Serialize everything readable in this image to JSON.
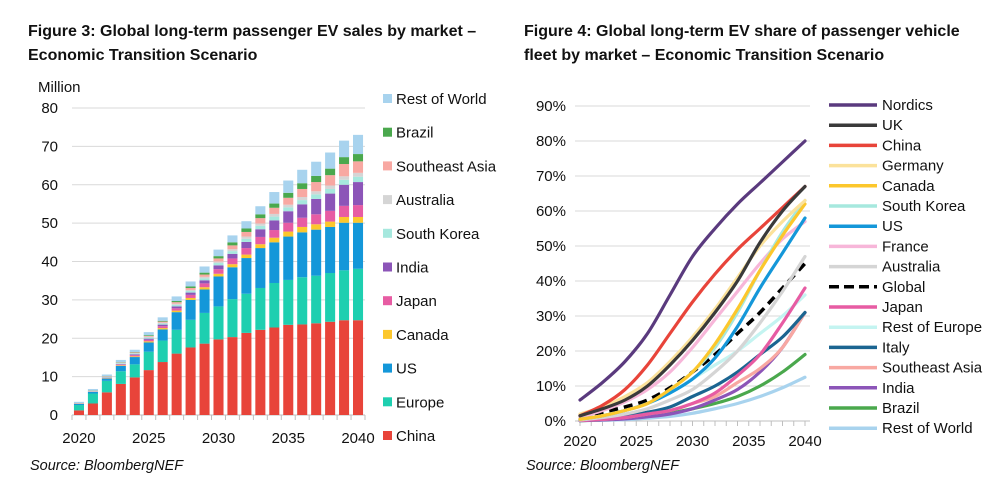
{
  "figure3": {
    "title": "Figure 3: Global long-term passenger EV sales by market – Economic Transition Scenario",
    "source": "Source: BloombergNEF"
  },
  "figure4": {
    "title": "Figure 4: Global long-term EV share of passenger vehicle fleet by market – Economic Transition Scenario",
    "source": "Source: BloombergNEF"
  },
  "chart_data": [
    {
      "type": "bar",
      "stacked": true,
      "title": "Figure 3: Global long-term passenger EV sales by market – Economic Transition Scenario",
      "ylabel": "Million",
      "xlabel": "",
      "ylim": [
        0,
        80
      ],
      "yticks": [
        "0",
        "10",
        "20",
        "30",
        "40",
        "50",
        "60",
        "70",
        "80"
      ],
      "xticks": [
        "2020",
        "2025",
        "2030",
        "2035",
        "2040"
      ],
      "grid": true,
      "legend_position": "right",
      "categories": [
        2020,
        2021,
        2022,
        2023,
        2024,
        2025,
        2026,
        2027,
        2028,
        2029,
        2030,
        2031,
        2032,
        2033,
        2034,
        2035,
        2036,
        2037,
        2038,
        2039,
        2040
      ],
      "series": [
        {
          "name": "China",
          "color": "#e8443a",
          "values": [
            1.2,
            3.0,
            5.9,
            8.1,
            9.8,
            11.7,
            13.8,
            16.0,
            17.6,
            18.6,
            19.7,
            20.3,
            21.4,
            22.2,
            22.8,
            23.5,
            23.6,
            23.9,
            24.3,
            24.7,
            24.7
          ]
        },
        {
          "name": "Europe",
          "color": "#1ecfb0",
          "values": [
            1.4,
            2.6,
            3.0,
            3.3,
            3.4,
            4.8,
            5.6,
            6.2,
            7.2,
            8.0,
            8.6,
            9.9,
            10.2,
            10.9,
            11.6,
            11.7,
            12.3,
            12.4,
            12.7,
            13.0,
            13.4
          ]
        },
        {
          "name": "US",
          "color": "#1497d9",
          "values": [
            0.3,
            0.4,
            0.6,
            1.4,
            1.9,
            2.4,
            2.9,
            4.6,
            5.2,
            6.1,
            7.8,
            8.3,
            9.3,
            10.4,
            10.6,
            11.3,
            11.7,
            12.0,
            12.0,
            12.4,
            12.0
          ]
        },
        {
          "name": "Canada",
          "color": "#fcc72c",
          "values": [
            0.05,
            0.05,
            0.1,
            0.15,
            0.2,
            0.3,
            0.35,
            0.4,
            0.5,
            0.6,
            0.7,
            0.8,
            0.9,
            1.0,
            1.2,
            1.3,
            1.4,
            1.4,
            1.4,
            1.5,
            1.5
          ]
        },
        {
          "name": "Japan",
          "color": "#e75ca3",
          "values": [
            0.05,
            0.05,
            0.1,
            0.2,
            0.3,
            0.4,
            0.5,
            0.6,
            0.8,
            1.0,
            1.2,
            1.5,
            1.7,
            1.9,
            2.0,
            2.3,
            2.4,
            2.6,
            2.8,
            2.9,
            3.1
          ]
        },
        {
          "name": "India",
          "color": "#8c55b8",
          "values": [
            0.02,
            0.03,
            0.05,
            0.1,
            0.2,
            0.3,
            0.4,
            0.5,
            0.6,
            0.8,
            1.0,
            1.2,
            1.6,
            2.0,
            2.5,
            3.0,
            3.5,
            4.0,
            4.5,
            5.5,
            6.0
          ]
        },
        {
          "name": "South Korea",
          "color": "#a6e8de",
          "values": [
            0.05,
            0.1,
            0.15,
            0.2,
            0.2,
            0.3,
            0.3,
            0.4,
            0.4,
            0.5,
            0.6,
            0.7,
            0.8,
            0.9,
            1.0,
            1.0,
            1.1,
            1.2,
            1.2,
            1.3,
            1.4
          ]
        },
        {
          "name": "Australia",
          "color": "#d5d5d5",
          "values": [
            0.02,
            0.05,
            0.1,
            0.1,
            0.15,
            0.2,
            0.2,
            0.3,
            0.3,
            0.4,
            0.4,
            0.5,
            0.6,
            0.6,
            0.7,
            0.7,
            0.8,
            0.8,
            0.9,
            0.9,
            1.0
          ]
        },
        {
          "name": "Southeast Asia",
          "color": "#f8a8a2",
          "values": [
            0.02,
            0.05,
            0.1,
            0.1,
            0.15,
            0.2,
            0.3,
            0.4,
            0.5,
            0.6,
            0.8,
            1.0,
            1.2,
            1.4,
            1.6,
            1.8,
            2.1,
            2.4,
            2.7,
            3.2,
            3.0
          ]
        },
        {
          "name": "Brazil",
          "color": "#4aa84d",
          "values": [
            0.02,
            0.05,
            0.05,
            0.1,
            0.1,
            0.2,
            0.2,
            0.3,
            0.4,
            0.5,
            0.6,
            0.8,
            0.9,
            1.0,
            1.1,
            1.3,
            1.5,
            1.6,
            1.7,
            1.8,
            1.9
          ]
        },
        {
          "name": "Rest of World",
          "color": "#a8d3ee",
          "values": [
            0.3,
            0.4,
            0.4,
            0.6,
            0.6,
            0.8,
            0.9,
            1.2,
            1.3,
            1.6,
            1.7,
            1.8,
            1.9,
            2.1,
            3.0,
            3.2,
            3.5,
            3.7,
            4.2,
            4.3,
            5.0
          ]
        }
      ]
    },
    {
      "type": "line",
      "title": "Figure 4: Global long-term EV share of passenger vehicle fleet by market – Economic Transition Scenario",
      "xlabel": "",
      "ylabel": "",
      "ylim": [
        0,
        90
      ],
      "yticks": [
        "0%",
        "10%",
        "20%",
        "30%",
        "40%",
        "50%",
        "60%",
        "70%",
        "80%",
        "90%"
      ],
      "xticks": [
        "2020",
        "2025",
        "2030",
        "2035",
        "2040"
      ],
      "grid": true,
      "legend_position": "right",
      "x": [
        2020,
        2022,
        2024,
        2026,
        2028,
        2030,
        2032,
        2034,
        2036,
        2038,
        2040
      ],
      "series": [
        {
          "name": "Nordics",
          "color": "#5a3a7e",
          "dashed": false,
          "values": [
            6,
            11,
            17,
            25,
            36,
            47,
            55,
            62,
            68,
            74,
            80
          ]
        },
        {
          "name": "UK",
          "color": "#3a3a3a",
          "dashed": false,
          "values": [
            1.5,
            3.5,
            6,
            10,
            16,
            23,
            31,
            40,
            51,
            60,
            67
          ]
        },
        {
          "name": "China",
          "color": "#e8443a",
          "dashed": false,
          "values": [
            1.5,
            4.5,
            9,
            16,
            25,
            34,
            42,
            49,
            55,
            61,
            67
          ]
        },
        {
          "name": "Germany",
          "color": "#fbe29b",
          "dashed": false,
          "values": [
            2,
            4,
            7,
            11,
            17,
            24,
            32,
            41,
            50,
            57,
            63
          ]
        },
        {
          "name": "Canada",
          "color": "#fcc72c",
          "dashed": false,
          "values": [
            0.5,
            1.5,
            3,
            5,
            9,
            14,
            22,
            32,
            43,
            53,
            62
          ]
        },
        {
          "name": "South Korea",
          "color": "#a6e8de",
          "dashed": false,
          "values": [
            0.5,
            1.5,
            3,
            5,
            9,
            14,
            21,
            31,
            43,
            54,
            63
          ]
        },
        {
          "name": "US",
          "color": "#1497d9",
          "dashed": false,
          "values": [
            0.5,
            1.5,
            3,
            5,
            8,
            12,
            18,
            27,
            38,
            48,
            58
          ]
        },
        {
          "name": "France",
          "color": "#f7b6d9",
          "dashed": false,
          "values": [
            1,
            3,
            5.5,
            9,
            14,
            21,
            29,
            37,
            45,
            52,
            57
          ]
        },
        {
          "name": "Australia",
          "color": "#d5d5d5",
          "dashed": false,
          "values": [
            0.3,
            1,
            2,
            3.5,
            6,
            9,
            14,
            20,
            28,
            37,
            47
          ]
        },
        {
          "name": "Global",
          "color": "#000000",
          "dashed": true,
          "values": [
            1,
            2.5,
            4,
            6,
            9.5,
            14,
            19,
            25,
            31,
            38,
            45
          ]
        },
        {
          "name": "Japan",
          "color": "#e75ca3",
          "dashed": false,
          "values": [
            0.2,
            0.5,
            1,
            2,
            3,
            5,
            8,
            13,
            19,
            28,
            38
          ]
        },
        {
          "name": "Rest of Europe",
          "color": "#c4f4f1",
          "dashed": false,
          "values": [
            0.5,
            1.5,
            3,
            5,
            8,
            12,
            16,
            20,
            25,
            30,
            36
          ]
        },
        {
          "name": "Italy",
          "color": "#1b6591",
          "dashed": false,
          "values": [
            0.3,
            0.8,
            1.5,
            2.5,
            4,
            7,
            10,
            14,
            19,
            24,
            31
          ]
        },
        {
          "name": "Southeast Asia",
          "color": "#f8a8a2",
          "dashed": false,
          "values": [
            0.2,
            0.5,
            1,
            2,
            3,
            5,
            7,
            11,
            15,
            21,
            31
          ]
        },
        {
          "name": "India",
          "color": "#8c55b8",
          "dashed": false,
          "values": [
            0.1,
            0.3,
            0.6,
            1.2,
            2,
            3.5,
            6,
            9,
            14,
            21,
            31
          ]
        },
        {
          "name": "Brazil",
          "color": "#4aa84d",
          "dashed": false,
          "values": [
            0.1,
            0.3,
            0.7,
            1.3,
            2.2,
            3.5,
            5,
            7,
            10,
            14,
            19
          ]
        },
        {
          "name": "Rest of World",
          "color": "#a8d3ee",
          "dashed": false,
          "values": [
            0.1,
            0.2,
            0.4,
            0.8,
            1.3,
            2.2,
            3.5,
            5,
            7,
            9.5,
            12.5
          ]
        }
      ]
    }
  ]
}
